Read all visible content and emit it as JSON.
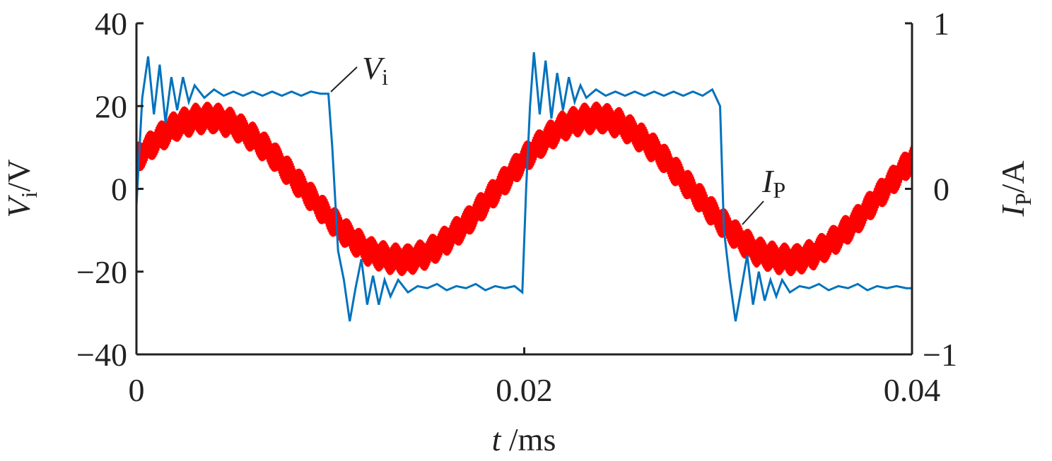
{
  "chart_data": {
    "type": "line",
    "title": "",
    "xlabel": {
      "main": "t",
      "unit": " /ms"
    },
    "ylabel_left": {
      "main": "V",
      "sub": "i",
      "unit": "/V"
    },
    "ylabel_right": {
      "main": "I",
      "sub": "P",
      "unit": "/A"
    },
    "xlim": [
      0,
      0.04
    ],
    "ylim_left": [
      -40,
      40
    ],
    "ylim_right": [
      -1,
      1
    ],
    "x_ticks": [
      {
        "v": 0,
        "label": "0"
      },
      {
        "v": 0.02,
        "label": "0.02"
      },
      {
        "v": 0.04,
        "label": "0.04"
      }
    ],
    "y_ticks_left": [
      {
        "v": 40,
        "label": "40"
      },
      {
        "v": 20,
        "label": "20"
      },
      {
        "v": 0,
        "label": "0"
      },
      {
        "v": -20,
        "label": "−20"
      },
      {
        "v": -40,
        "label": "−40"
      }
    ],
    "y_ticks_right": [
      {
        "v": 1,
        "label": "1"
      },
      {
        "v": 0,
        "label": "0"
      },
      {
        "v": -1,
        "label": "−1"
      }
    ],
    "grid": false,
    "series": [
      {
        "name": "Vi",
        "axis": "left",
        "color": "#0072BD",
        "x": [
          0,
          0.0003,
          0.0006,
          0.0009,
          0.0012,
          0.0015,
          0.0018,
          0.0021,
          0.0024,
          0.0027,
          0.003,
          0.0035,
          0.004,
          0.0045,
          0.005,
          0.0055,
          0.006,
          0.0065,
          0.007,
          0.0075,
          0.008,
          0.0085,
          0.009,
          0.0095,
          0.0099,
          0.0101,
          0.0104,
          0.0107,
          0.011,
          0.0113,
          0.0116,
          0.0119,
          0.0122,
          0.0125,
          0.0128,
          0.0131,
          0.0135,
          0.014,
          0.0145,
          0.015,
          0.0155,
          0.016,
          0.0165,
          0.017,
          0.0175,
          0.018,
          0.0185,
          0.019,
          0.0195,
          0.0199,
          0.0201,
          0.0203,
          0.0205,
          0.0208,
          0.0211,
          0.0214,
          0.0217,
          0.022,
          0.0223,
          0.0226,
          0.0229,
          0.0232,
          0.0237,
          0.0242,
          0.0247,
          0.0252,
          0.0257,
          0.0262,
          0.0267,
          0.0272,
          0.0277,
          0.0282,
          0.0287,
          0.0292,
          0.0297,
          0.0301,
          0.0303,
          0.0306,
          0.0309,
          0.0312,
          0.0315,
          0.0318,
          0.0321,
          0.0324,
          0.0327,
          0.033,
          0.0333,
          0.0337,
          0.0342,
          0.0347,
          0.0352,
          0.0357,
          0.0362,
          0.0367,
          0.0372,
          0.0377,
          0.0382,
          0.0387,
          0.0392,
          0.0397,
          0.04
        ],
        "y": [
          -4,
          22,
          32,
          18,
          30,
          16,
          27,
          19,
          27,
          21,
          25,
          22,
          24,
          22.5,
          23.5,
          22.5,
          23.5,
          22.5,
          23.5,
          22.5,
          23.5,
          22.5,
          23.5,
          23,
          23,
          10,
          -15,
          -22,
          -32,
          -24,
          -17,
          -28,
          -21,
          -28,
          -22,
          -26,
          -22,
          -25,
          -23.5,
          -24,
          -23,
          -24.5,
          -23.5,
          -24,
          -23,
          -24.5,
          -23.5,
          -24,
          -23.5,
          -25,
          0,
          20,
          33,
          18,
          31,
          17,
          28,
          19,
          27,
          21,
          25,
          22,
          24,
          22.5,
          23.5,
          22.5,
          23.5,
          22.5,
          23.5,
          22.5,
          23.5,
          22.5,
          23.5,
          22.5,
          24,
          20,
          -10,
          -22,
          -32,
          -24,
          -16,
          -28,
          -20,
          -27,
          -22,
          -26,
          -22,
          -25,
          -23.5,
          -24,
          -23,
          -24.5,
          -23.5,
          -24,
          -23,
          -24.5,
          -23.5,
          -24,
          -23.5,
          -24,
          -24
        ]
      },
      {
        "name": "IP",
        "axis": "right",
        "color": "#FF0000",
        "x": [
          0,
          0.001,
          0.002,
          0.003,
          0.004,
          0.005,
          0.006,
          0.007,
          0.008,
          0.009,
          0.01,
          0.011,
          0.012,
          0.013,
          0.014,
          0.015,
          0.016,
          0.017,
          0.018,
          0.019,
          0.02,
          0.021,
          0.022,
          0.023,
          0.024,
          0.025,
          0.026,
          0.027,
          0.028,
          0.029,
          0.03,
          0.031,
          0.032,
          0.033,
          0.034,
          0.035,
          0.036,
          0.037,
          0.038,
          0.039,
          0.04
        ],
        "y": [
          0.18,
          0.29,
          0.38,
          0.42,
          0.43,
          0.39,
          0.31,
          0.21,
          0.08,
          -0.05,
          -0.18,
          -0.29,
          -0.38,
          -0.42,
          -0.43,
          -0.39,
          -0.31,
          -0.21,
          -0.08,
          0.05,
          0.18,
          0.29,
          0.38,
          0.42,
          0.43,
          0.39,
          0.31,
          0.21,
          0.08,
          -0.05,
          -0.18,
          -0.29,
          -0.38,
          -0.42,
          -0.43,
          -0.39,
          -0.31,
          -0.21,
          -0.08,
          0.05,
          0.18
        ],
        "ripple_amplitude": 0.1
      }
    ],
    "annotations": [
      {
        "main": "V",
        "sub": "i",
        "series": "Vi",
        "at_x": 0.0099,
        "at_y": 23
      },
      {
        "main": "I",
        "sub": "P",
        "series": "IP",
        "at_x": 0.031,
        "at_y": -0.2
      }
    ]
  }
}
